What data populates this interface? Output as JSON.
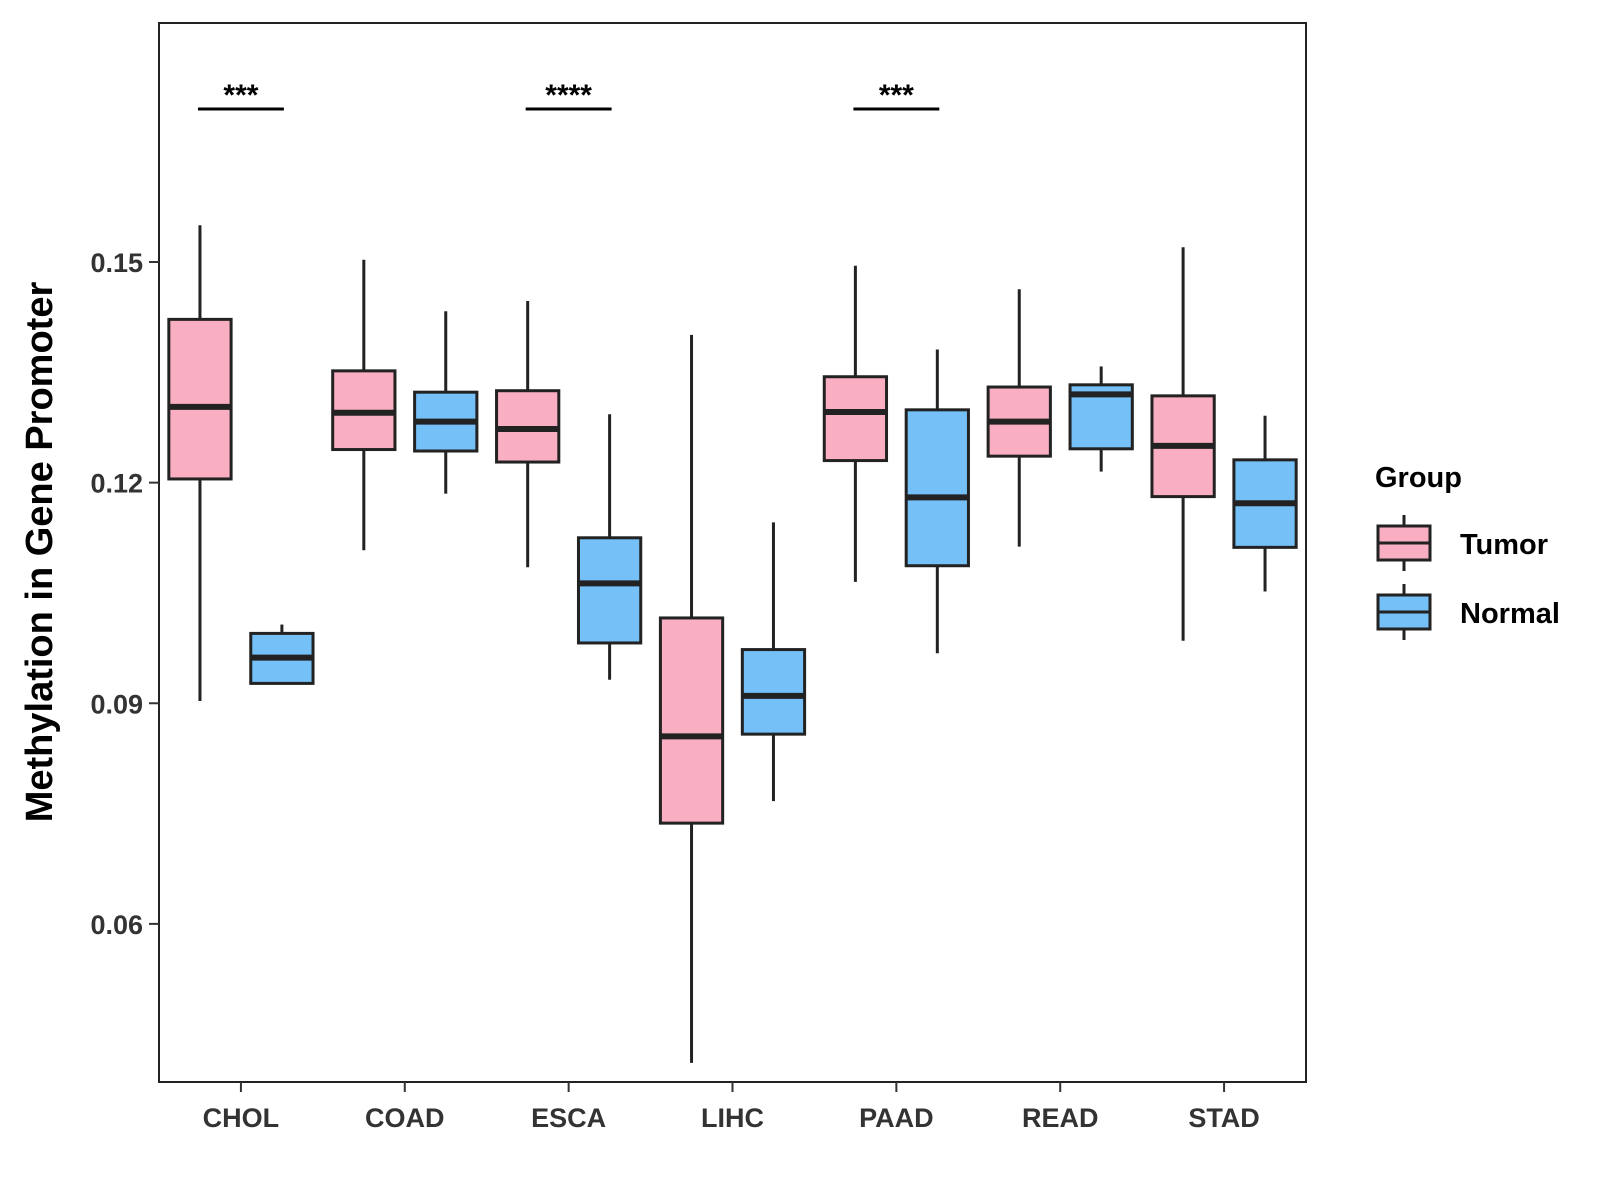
{
  "chart_data": {
    "type": "boxplot",
    "title": "",
    "xlabel": "",
    "ylabel": "Methylation in Gene Promoter",
    "ylim": [
      0.0385,
      0.1825
    ],
    "yticks": [
      0.06,
      0.09,
      0.12,
      0.15
    ],
    "ytick_labels": [
      "0.06",
      "0.09",
      "0.12",
      "0.15"
    ],
    "grid": false,
    "categories": [
      "CHOL",
      "COAD",
      "ESCA",
      "LIHC",
      "PAAD",
      "READ",
      "STAD"
    ],
    "legend": {
      "title": "Group",
      "position": "right",
      "entries": [
        "Tumor",
        "Normal"
      ]
    },
    "series": [
      {
        "name": "Tumor",
        "color": "#F9AEC2",
        "boxes": [
          {
            "category": "CHOL",
            "min": 0.0903,
            "q1": 0.1205,
            "median": 0.1303,
            "q3": 0.1422,
            "max": 0.155
          },
          {
            "category": "COAD",
            "min": 0.1108,
            "q1": 0.1245,
            "median": 0.1295,
            "q3": 0.1352,
            "max": 0.1503
          },
          {
            "category": "ESCA",
            "min": 0.1085,
            "q1": 0.1228,
            "median": 0.1273,
            "q3": 0.1325,
            "max": 0.1447
          },
          {
            "category": "LIHC",
            "min": 0.0411,
            "q1": 0.0737,
            "median": 0.0855,
            "q3": 0.1016,
            "max": 0.1401
          },
          {
            "category": "PAAD",
            "min": 0.1065,
            "q1": 0.123,
            "median": 0.1296,
            "q3": 0.1344,
            "max": 0.1495
          },
          {
            "category": "READ",
            "min": 0.1113,
            "q1": 0.1236,
            "median": 0.1283,
            "q3": 0.133,
            "max": 0.1463
          },
          {
            "category": "STAD",
            "min": 0.0985,
            "q1": 0.1181,
            "median": 0.125,
            "q3": 0.1318,
            "max": 0.152
          }
        ]
      },
      {
        "name": "Normal",
        "color": "#74C0F7",
        "boxes": [
          {
            "category": "CHOL",
            "min": 0.0927,
            "q1": 0.0927,
            "median": 0.0962,
            "q3": 0.0995,
            "max": 0.1007
          },
          {
            "category": "COAD",
            "min": 0.1185,
            "q1": 0.1243,
            "median": 0.1283,
            "q3": 0.1323,
            "max": 0.1433
          },
          {
            "category": "ESCA",
            "min": 0.0932,
            "q1": 0.0982,
            "median": 0.1063,
            "q3": 0.1125,
            "max": 0.1293
          },
          {
            "category": "LIHC",
            "min": 0.0767,
            "q1": 0.0858,
            "median": 0.091,
            "q3": 0.0973,
            "max": 0.1146
          },
          {
            "category": "PAAD",
            "min": 0.0968,
            "q1": 0.1087,
            "median": 0.118,
            "q3": 0.1299,
            "max": 0.1381
          },
          {
            "category": "READ",
            "min": 0.1215,
            "q1": 0.1246,
            "median": 0.132,
            "q3": 0.1333,
            "max": 0.1358
          },
          {
            "category": "STAD",
            "min": 0.1052,
            "q1": 0.1112,
            "median": 0.1172,
            "q3": 0.1231,
            "max": 0.1291
          }
        ]
      }
    ],
    "significance": [
      {
        "category": "CHOL",
        "label": "***",
        "y": 0.1708
      },
      {
        "category": "ESCA",
        "label": "****",
        "y": 0.1708
      },
      {
        "category": "PAAD",
        "label": "***",
        "y": 0.1708
      }
    ]
  }
}
